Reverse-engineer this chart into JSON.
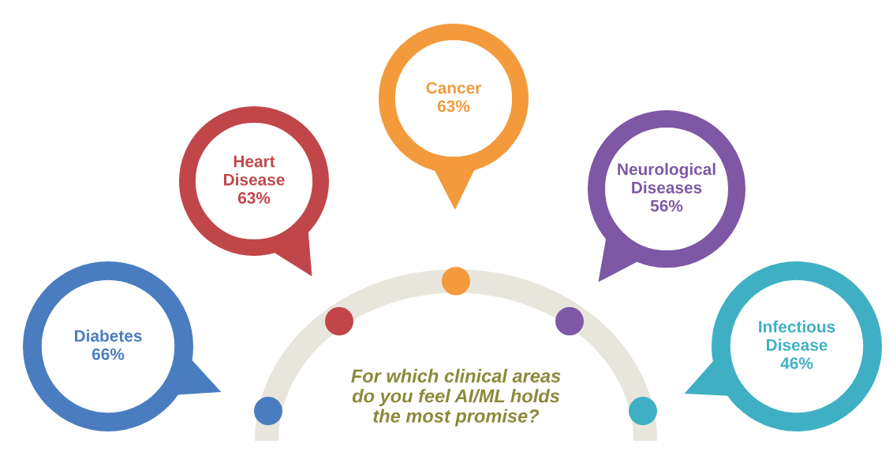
{
  "chart_data": {
    "type": "other",
    "title": "For which clinical areas do you feel AI/ML holds the most promise?",
    "categories": [
      "Diabetes",
      "Heart Disease",
      "Cancer",
      "Neurological Diseases",
      "Infectious Disease"
    ],
    "values": [
      66,
      63,
      63,
      56,
      46
    ],
    "value_labels": [
      "66%",
      "63%",
      "63%",
      "56%",
      "46%"
    ],
    "colors": [
      "#4a7cc0",
      "#c0464a",
      "#f39a3c",
      "#7e57a5",
      "#3fb0c4"
    ]
  }
}
